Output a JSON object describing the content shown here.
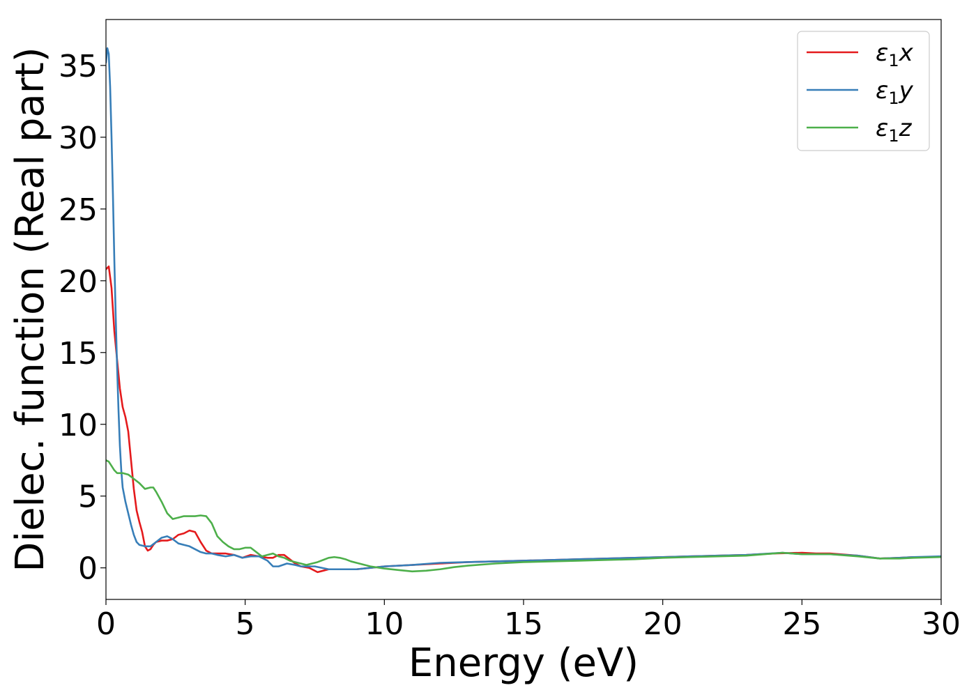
{
  "chart_data": {
    "type": "line",
    "xlabel": "Energy (eV)",
    "ylabel": "Dielec. function (Real part)",
    "xlim": [
      0,
      30
    ],
    "ylim": [
      -2.2,
      38.2
    ],
    "xticks": [
      0,
      5,
      10,
      15,
      20,
      25,
      30
    ],
    "yticks": [
      0,
      5,
      10,
      15,
      20,
      25,
      30,
      35
    ],
    "grid": false,
    "legend_position": "top-right",
    "series": [
      {
        "name": "ε₁x",
        "legend_base": "ε",
        "legend_sub": "1",
        "legend_var": "x",
        "color": "#e41a1c",
        "points": [
          [
            0,
            20.8
          ],
          [
            0.1,
            21.0
          ],
          [
            0.2,
            19.5
          ],
          [
            0.3,
            16.5
          ],
          [
            0.4,
            14.5
          ],
          [
            0.5,
            12.5
          ],
          [
            0.6,
            11.2
          ],
          [
            0.7,
            10.5
          ],
          [
            0.8,
            9.5
          ],
          [
            0.9,
            7.5
          ],
          [
            1.0,
            5.5
          ],
          [
            1.1,
            4.0
          ],
          [
            1.2,
            3.2
          ],
          [
            1.3,
            2.5
          ],
          [
            1.4,
            1.5
          ],
          [
            1.5,
            1.2
          ],
          [
            1.6,
            1.3
          ],
          [
            1.7,
            1.6
          ],
          [
            1.8,
            1.8
          ],
          [
            2.0,
            1.9
          ],
          [
            2.2,
            1.9
          ],
          [
            2.4,
            2.0
          ],
          [
            2.6,
            2.3
          ],
          [
            2.8,
            2.4
          ],
          [
            3.0,
            2.6
          ],
          [
            3.2,
            2.5
          ],
          [
            3.4,
            1.8
          ],
          [
            3.6,
            1.2
          ],
          [
            3.8,
            1.0
          ],
          [
            4.0,
            1.0
          ],
          [
            4.3,
            1.0
          ],
          [
            4.6,
            0.9
          ],
          [
            4.9,
            0.7
          ],
          [
            5.2,
            0.9
          ],
          [
            5.5,
            0.8
          ],
          [
            5.8,
            0.7
          ],
          [
            6.0,
            0.7
          ],
          [
            6.2,
            0.9
          ],
          [
            6.4,
            0.9
          ],
          [
            6.6,
            0.6
          ],
          [
            6.8,
            0.3
          ],
          [
            7.0,
            0.1
          ],
          [
            7.3,
            0.0
          ],
          [
            7.6,
            -0.3
          ],
          [
            7.8,
            -0.2
          ],
          [
            8.0,
            -0.1
          ],
          [
            8.5,
            -0.1
          ],
          [
            9.0,
            -0.1
          ],
          [
            9.5,
            0.0
          ],
          [
            10.0,
            0.1
          ],
          [
            11.0,
            0.2
          ],
          [
            12.0,
            0.3
          ],
          [
            13.0,
            0.4
          ],
          [
            14.0,
            0.45
          ],
          [
            15.0,
            0.5
          ],
          [
            16.0,
            0.55
          ],
          [
            17.0,
            0.6
          ],
          [
            18.0,
            0.65
          ],
          [
            19.0,
            0.7
          ],
          [
            20.0,
            0.75
          ],
          [
            21.0,
            0.8
          ],
          [
            22.0,
            0.85
          ],
          [
            23.0,
            0.9
          ],
          [
            24.0,
            1.0
          ],
          [
            25.0,
            1.05
          ],
          [
            25.5,
            1.0
          ],
          [
            26.0,
            1.0
          ],
          [
            27.0,
            0.85
          ],
          [
            27.8,
            0.65
          ],
          [
            28.5,
            0.7
          ],
          [
            29.0,
            0.75
          ],
          [
            30.0,
            0.75
          ]
        ]
      },
      {
        "name": "ε₁y",
        "legend_base": "ε",
        "legend_sub": "1",
        "legend_var": "y",
        "color": "#377eb8",
        "points": [
          [
            0,
            35.2
          ],
          [
            0.05,
            36.2
          ],
          [
            0.1,
            35.8
          ],
          [
            0.15,
            33.5
          ],
          [
            0.2,
            30.0
          ],
          [
            0.25,
            26.0
          ],
          [
            0.3,
            21.5
          ],
          [
            0.35,
            17.5
          ],
          [
            0.4,
            14.0
          ],
          [
            0.45,
            11.0
          ],
          [
            0.5,
            8.5
          ],
          [
            0.55,
            6.8
          ],
          [
            0.6,
            5.6
          ],
          [
            0.7,
            4.6
          ],
          [
            0.8,
            3.8
          ],
          [
            0.9,
            3.0
          ],
          [
            1.0,
            2.3
          ],
          [
            1.1,
            1.8
          ],
          [
            1.2,
            1.6
          ],
          [
            1.4,
            1.5
          ],
          [
            1.6,
            1.5
          ],
          [
            1.8,
            1.8
          ],
          [
            2.0,
            2.1
          ],
          [
            2.2,
            2.2
          ],
          [
            2.4,
            2.0
          ],
          [
            2.6,
            1.7
          ],
          [
            2.8,
            1.6
          ],
          [
            3.0,
            1.5
          ],
          [
            3.2,
            1.3
          ],
          [
            3.4,
            1.1
          ],
          [
            3.6,
            1.0
          ],
          [
            3.8,
            1.0
          ],
          [
            4.0,
            0.9
          ],
          [
            4.3,
            0.8
          ],
          [
            4.6,
            0.9
          ],
          [
            4.9,
            0.7
          ],
          [
            5.2,
            0.8
          ],
          [
            5.5,
            0.8
          ],
          [
            5.8,
            0.5
          ],
          [
            6.0,
            0.1
          ],
          [
            6.2,
            0.1
          ],
          [
            6.5,
            0.3
          ],
          [
            6.8,
            0.2
          ],
          [
            7.0,
            0.1
          ],
          [
            7.5,
            0.1
          ],
          [
            8.0,
            -0.1
          ],
          [
            8.5,
            -0.1
          ],
          [
            9.0,
            -0.1
          ],
          [
            9.5,
            0.0
          ],
          [
            10.0,
            0.1
          ],
          [
            11.0,
            0.2
          ],
          [
            12.0,
            0.35
          ],
          [
            13.0,
            0.4
          ],
          [
            14.0,
            0.45
          ],
          [
            15.0,
            0.5
          ],
          [
            16.0,
            0.55
          ],
          [
            17.0,
            0.6
          ],
          [
            18.0,
            0.65
          ],
          [
            19.0,
            0.7
          ],
          [
            20.0,
            0.75
          ],
          [
            21.0,
            0.8
          ],
          [
            22.0,
            0.85
          ],
          [
            23.0,
            0.9
          ],
          [
            24.3,
            1.05
          ],
          [
            25.0,
            0.95
          ],
          [
            26.0,
            0.95
          ],
          [
            27.0,
            0.85
          ],
          [
            27.8,
            0.65
          ],
          [
            28.5,
            0.7
          ],
          [
            29.0,
            0.75
          ],
          [
            30.0,
            0.8
          ]
        ]
      },
      {
        "name": "ε₁z",
        "legend_base": "ε",
        "legend_sub": "1",
        "legend_var": "z",
        "color": "#4daf4a",
        "points": [
          [
            0,
            7.5
          ],
          [
            0.1,
            7.4
          ],
          [
            0.2,
            7.1
          ],
          [
            0.3,
            6.8
          ],
          [
            0.4,
            6.6
          ],
          [
            0.6,
            6.6
          ],
          [
            0.8,
            6.5
          ],
          [
            1.0,
            6.2
          ],
          [
            1.2,
            5.9
          ],
          [
            1.4,
            5.5
          ],
          [
            1.6,
            5.6
          ],
          [
            1.7,
            5.6
          ],
          [
            1.8,
            5.3
          ],
          [
            2.0,
            4.6
          ],
          [
            2.2,
            3.8
          ],
          [
            2.4,
            3.4
          ],
          [
            2.6,
            3.5
          ],
          [
            2.8,
            3.6
          ],
          [
            3.0,
            3.6
          ],
          [
            3.2,
            3.6
          ],
          [
            3.4,
            3.65
          ],
          [
            3.6,
            3.6
          ],
          [
            3.8,
            3.1
          ],
          [
            4.0,
            2.2
          ],
          [
            4.2,
            1.8
          ],
          [
            4.4,
            1.5
          ],
          [
            4.6,
            1.3
          ],
          [
            4.8,
            1.3
          ],
          [
            5.0,
            1.4
          ],
          [
            5.2,
            1.4
          ],
          [
            5.4,
            1.1
          ],
          [
            5.6,
            0.8
          ],
          [
            5.8,
            0.9
          ],
          [
            6.0,
            1.0
          ],
          [
            6.2,
            0.8
          ],
          [
            6.4,
            0.7
          ],
          [
            6.6,
            0.5
          ],
          [
            6.8,
            0.4
          ],
          [
            7.0,
            0.3
          ],
          [
            7.2,
            0.2
          ],
          [
            7.4,
            0.3
          ],
          [
            7.6,
            0.4
          ],
          [
            7.8,
            0.55
          ],
          [
            8.0,
            0.7
          ],
          [
            8.2,
            0.75
          ],
          [
            8.4,
            0.7
          ],
          [
            8.6,
            0.6
          ],
          [
            8.8,
            0.45
          ],
          [
            9.0,
            0.35
          ],
          [
            9.5,
            0.1
          ],
          [
            10.0,
            -0.05
          ],
          [
            10.5,
            -0.15
          ],
          [
            11.0,
            -0.25
          ],
          [
            11.5,
            -0.2
          ],
          [
            12.0,
            -0.1
          ],
          [
            12.5,
            0.05
          ],
          [
            13.0,
            0.15
          ],
          [
            14.0,
            0.3
          ],
          [
            15.0,
            0.4
          ],
          [
            16.0,
            0.45
          ],
          [
            17.0,
            0.5
          ],
          [
            18.0,
            0.55
          ],
          [
            19.0,
            0.6
          ],
          [
            20.0,
            0.7
          ],
          [
            21.0,
            0.75
          ],
          [
            22.0,
            0.8
          ],
          [
            23.0,
            0.85
          ],
          [
            24.3,
            1.05
          ],
          [
            25.0,
            0.95
          ],
          [
            26.0,
            0.95
          ],
          [
            27.0,
            0.8
          ],
          [
            27.8,
            0.65
          ],
          [
            28.5,
            0.65
          ],
          [
            29.0,
            0.7
          ],
          [
            30.0,
            0.75
          ]
        ]
      }
    ]
  }
}
